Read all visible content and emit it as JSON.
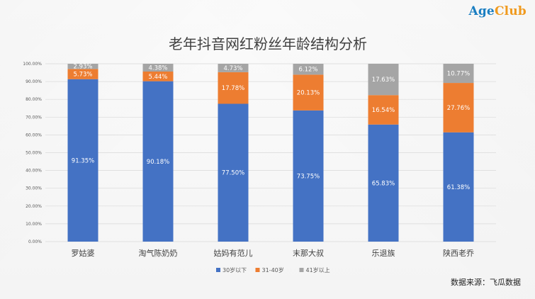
{
  "logo": {
    "part1": "Age",
    "part2": "Club"
  },
  "source": "数据来源：飞瓜数据",
  "colors": {
    "young": "#4472c4",
    "middle": "#ed7d31",
    "old": "#a5a5a5"
  },
  "chart_data": {
    "type": "bar",
    "stacked": true,
    "percent_stacked": true,
    "title": "老年抖音网红粉丝年龄结构分析",
    "categories": [
      "罗姑婆",
      "淘气陈奶奶",
      "姑妈有范儿",
      "末那大叔",
      "乐退族",
      "陕西老乔"
    ],
    "series": [
      {
        "name": "30岁以下",
        "values": [
          91.35,
          90.18,
          77.5,
          73.75,
          65.83,
          61.38
        ],
        "labels": [
          "91.35%",
          "90.18%",
          "77.50%",
          "73.75%",
          "65.83%",
          "61.38%"
        ]
      },
      {
        "name": "31-40岁",
        "values": [
          5.73,
          5.44,
          17.78,
          20.13,
          16.54,
          27.76
        ],
        "labels": [
          "5.73%",
          "5.44%",
          "17.78%",
          "20.13%",
          "16.54%",
          "27.76%"
        ]
      },
      {
        "name": "41岁以上",
        "values": [
          2.93,
          4.38,
          4.73,
          6.12,
          17.63,
          10.77
        ],
        "labels": [
          "2.93%",
          "4.38%",
          "4.73%",
          "6.12%",
          "17.63%",
          "10.77%"
        ]
      }
    ],
    "yticks": [
      "0.00%",
      "10.00%",
      "20.00%",
      "30.00%",
      "40.00%",
      "50.00%",
      "60.00%",
      "70.00%",
      "80.00%",
      "90.00%",
      "100.00%"
    ],
    "ylim": [
      0,
      100
    ],
    "grid": true,
    "legend": "bottom"
  }
}
